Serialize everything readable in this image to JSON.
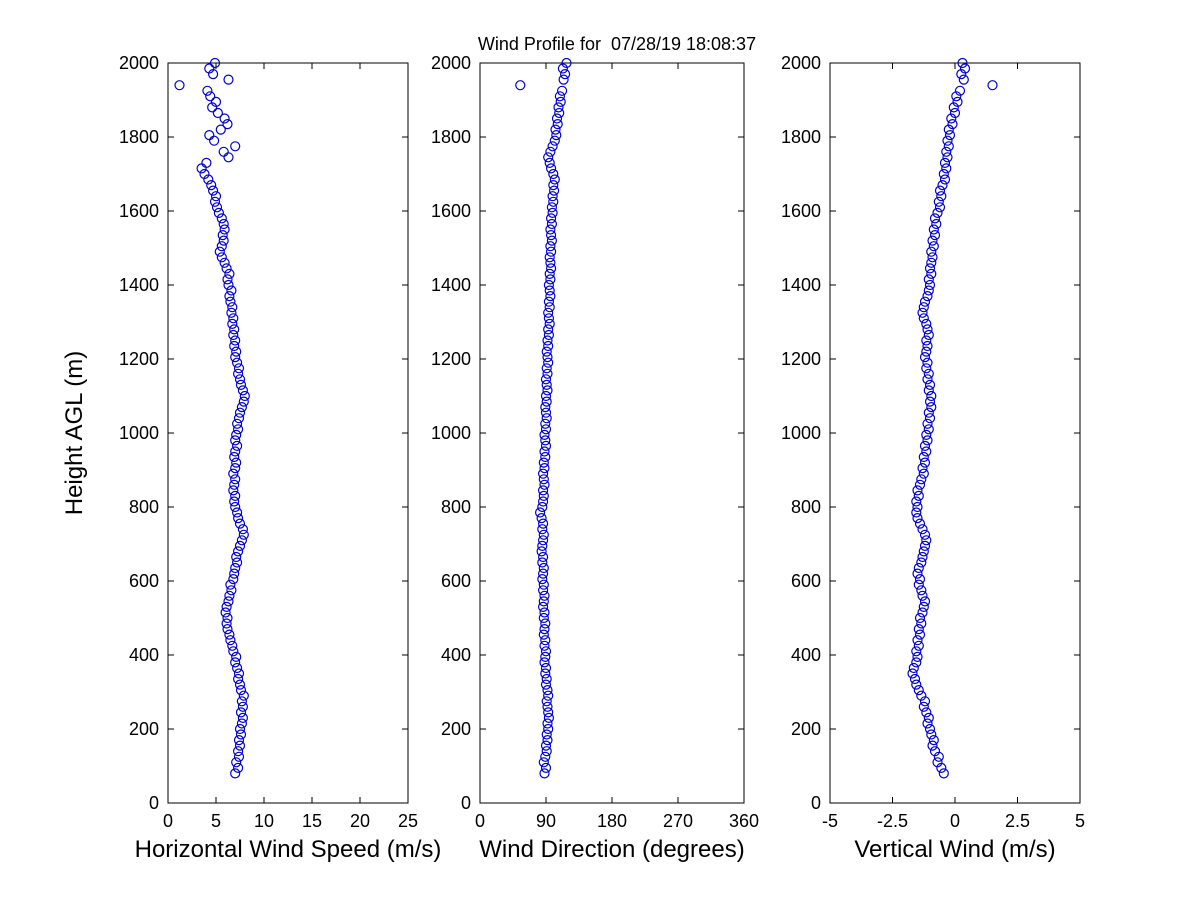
{
  "figure": {
    "background": "#FFFFFF",
    "axis_color": "#000000"
  },
  "chart_data": {
    "type": "scatter",
    "title": "Wind Profile for  07/28/19 18:08:37",
    "ylabel": "Height AGL (m)",
    "ylim": [
      0,
      2000
    ],
    "yticks": [
      0,
      200,
      400,
      600,
      800,
      1000,
      1200,
      1400,
      1600,
      1800,
      2000
    ],
    "marker": "open-circle",
    "marker_color": "#0000CD",
    "legend": "none",
    "grid": false,
    "heights": [
      80,
      95,
      110,
      125,
      140,
      155,
      170,
      185,
      200,
      215,
      230,
      245,
      260,
      275,
      290,
      305,
      320,
      335,
      350,
      365,
      380,
      395,
      410,
      425,
      440,
      455,
      470,
      485,
      500,
      515,
      530,
      545,
      560,
      575,
      590,
      605,
      620,
      635,
      650,
      665,
      680,
      695,
      710,
      725,
      740,
      755,
      770,
      785,
      800,
      815,
      830,
      845,
      860,
      875,
      890,
      905,
      920,
      935,
      950,
      965,
      980,
      995,
      1010,
      1025,
      1040,
      1055,
      1070,
      1085,
      1100,
      1115,
      1130,
      1145,
      1160,
      1175,
      1190,
      1205,
      1220,
      1235,
      1250,
      1265,
      1280,
      1295,
      1310,
      1325,
      1340,
      1355,
      1370,
      1385,
      1400,
      1415,
      1430,
      1445,
      1460,
      1475,
      1490,
      1505,
      1520,
      1535,
      1550,
      1565,
      1580,
      1595,
      1610,
      1625,
      1640,
      1655,
      1670,
      1685,
      1700,
      1715,
      1730,
      1745,
      1760,
      1775,
      1790,
      1805,
      1820,
      1835,
      1850,
      1865,
      1880,
      1895,
      1910,
      1925,
      1940,
      1955,
      1970,
      1985,
      2000
    ],
    "panels": [
      {
        "xlabel": "Horizontal Wind Speed (m/s)",
        "xlim": [
          0,
          25
        ],
        "xticks": [
          0,
          5,
          10,
          15,
          20,
          25
        ],
        "values": [
          7.0,
          7.3,
          7.1,
          7.4,
          7.3,
          7.5,
          7.4,
          7.6,
          7.5,
          7.7,
          7.8,
          7.6,
          7.8,
          7.7,
          7.9,
          7.6,
          7.5,
          7.3,
          7.4,
          7.2,
          7.0,
          7.1,
          6.8,
          6.7,
          6.5,
          6.4,
          6.2,
          6.1,
          6.2,
          6.0,
          6.1,
          6.3,
          6.4,
          6.6,
          6.5,
          6.8,
          6.9,
          7.0,
          7.2,
          7.1,
          7.3,
          7.5,
          7.7,
          7.9,
          7.8,
          7.5,
          7.3,
          7.2,
          7.0,
          6.9,
          7.0,
          6.8,
          6.9,
          7.0,
          6.8,
          7.0,
          7.1,
          6.9,
          7.0,
          7.2,
          7.0,
          7.1,
          7.3,
          7.2,
          7.4,
          7.5,
          7.7,
          7.9,
          8.0,
          7.8,
          7.6,
          7.5,
          7.3,
          7.4,
          7.2,
          7.0,
          7.1,
          6.9,
          7.0,
          6.8,
          6.9,
          6.7,
          6.8,
          6.6,
          6.7,
          6.5,
          6.4,
          6.6,
          6.3,
          6.2,
          6.4,
          6.1,
          5.9,
          5.6,
          5.4,
          5.6,
          5.8,
          5.7,
          5.9,
          5.8,
          5.6,
          5.3,
          5.1,
          4.9,
          5.0,
          4.7,
          4.5,
          4.2,
          3.8,
          3.5,
          4.0,
          6.3,
          5.8,
          7.0,
          4.8,
          4.3,
          5.5,
          6.2,
          5.9,
          5.2,
          4.6,
          5.0,
          4.4,
          4.1,
          1.2,
          6.3,
          4.7,
          4.3,
          4.9
        ]
      },
      {
        "xlabel": "Wind Direction (degrees)",
        "xlim": [
          0,
          360
        ],
        "xticks": [
          0,
          90,
          180,
          270,
          360
        ],
        "values": [
          88,
          90,
          87,
          89,
          91,
          90,
          92,
          91,
          93,
          92,
          94,
          93,
          92,
          91,
          93,
          92,
          90,
          91,
          89,
          90,
          88,
          89,
          90,
          88,
          89,
          87,
          88,
          89,
          87,
          88,
          86,
          87,
          88,
          86,
          87,
          85,
          86,
          87,
          85,
          86,
          84,
          85,
          86,
          87,
          85,
          86,
          84,
          82,
          85,
          86,
          87,
          86,
          88,
          87,
          86,
          88,
          87,
          89,
          88,
          90,
          89,
          88,
          90,
          89,
          91,
          90,
          89,
          91,
          90,
          92,
          91,
          90,
          92,
          91,
          93,
          92,
          91,
          93,
          92,
          94,
          93,
          95,
          94,
          93,
          95,
          94,
          96,
          95,
          94,
          96,
          95,
          97,
          96,
          95,
          97,
          96,
          98,
          97,
          96,
          98,
          97,
          99,
          98,
          100,
          99,
          101,
          100,
          102,
          100,
          97,
          95,
          93,
          96,
          99,
          102,
          104,
          103,
          106,
          105,
          108,
          107,
          110,
          109,
          112,
          55,
          114,
          116,
          113,
          118
        ]
      },
      {
        "xlabel": "Vertical Wind (m/s)",
        "xlim": [
          -5,
          5
        ],
        "xticks": [
          -5,
          -2.5,
          0,
          2.5,
          5
        ],
        "values": [
          -0.45,
          -0.55,
          -0.7,
          -0.65,
          -0.8,
          -0.9,
          -0.85,
          -0.95,
          -1.0,
          -1.1,
          -1.05,
          -1.15,
          -1.25,
          -1.2,
          -1.35,
          -1.45,
          -1.55,
          -1.6,
          -1.7,
          -1.65,
          -1.55,
          -1.5,
          -1.55,
          -1.45,
          -1.5,
          -1.4,
          -1.45,
          -1.35,
          -1.4,
          -1.3,
          -1.25,
          -1.2,
          -1.3,
          -1.35,
          -1.45,
          -1.4,
          -1.5,
          -1.45,
          -1.35,
          -1.3,
          -1.25,
          -1.2,
          -1.15,
          -1.2,
          -1.3,
          -1.4,
          -1.5,
          -1.55,
          -1.5,
          -1.55,
          -1.45,
          -1.5,
          -1.4,
          -1.35,
          -1.25,
          -1.3,
          -1.2,
          -1.25,
          -1.15,
          -1.2,
          -1.1,
          -1.15,
          -1.05,
          -1.1,
          -1.0,
          -1.05,
          -0.95,
          -1.0,
          -0.95,
          -1.05,
          -1.0,
          -1.1,
          -1.05,
          -1.15,
          -1.1,
          -1.2,
          -1.15,
          -1.1,
          -1.15,
          -1.05,
          -1.1,
          -1.15,
          -1.25,
          -1.3,
          -1.25,
          -1.2,
          -1.1,
          -1.05,
          -1.0,
          -1.05,
          -0.95,
          -1.0,
          -0.95,
          -0.9,
          -0.95,
          -0.85,
          -0.9,
          -0.8,
          -0.85,
          -0.75,
          -0.8,
          -0.7,
          -0.6,
          -0.65,
          -0.55,
          -0.6,
          -0.5,
          -0.4,
          -0.45,
          -0.35,
          -0.4,
          -0.3,
          -0.35,
          -0.25,
          -0.3,
          -0.2,
          -0.25,
          -0.1,
          -0.15,
          0.0,
          -0.05,
          0.1,
          0.05,
          0.2,
          1.5,
          0.35,
          0.25,
          0.4,
          0.3
        ]
      }
    ]
  }
}
